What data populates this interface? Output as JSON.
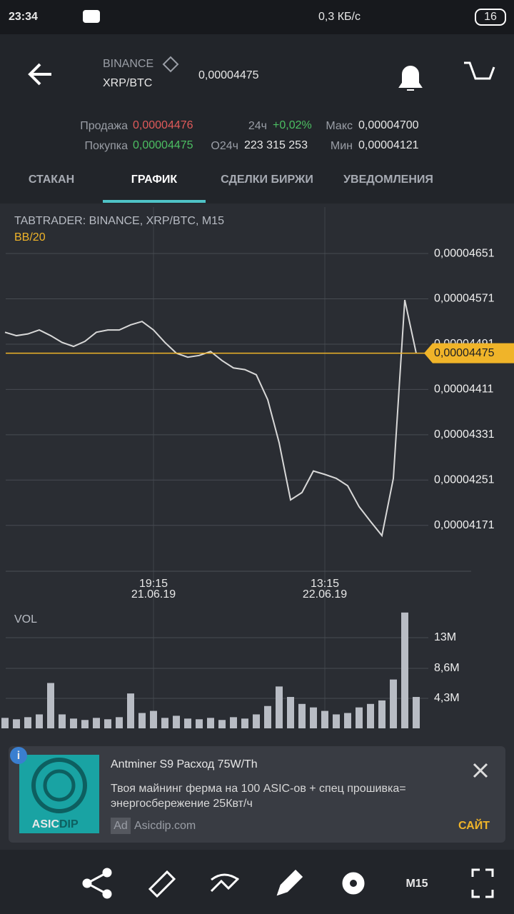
{
  "status_bar": {
    "time": "23:34",
    "speed": "0,3 КБ/с",
    "battery": "16"
  },
  "header": {
    "exchange": "BINANCE",
    "pair": "XRP/BTC",
    "price": "0,00004475"
  },
  "stats": {
    "sell_label": "Продажа",
    "sell": "0,00004476",
    "buy_label": "Покупка",
    "buy": "0,00004475",
    "change_label": "24ч",
    "change": "+0,02%",
    "volume_label": "O24ч",
    "volume": "223 315 253",
    "max_label": "Макс",
    "max": "0,00004700",
    "min_label": "Мин",
    "min": "0,00004121"
  },
  "tabs": {
    "items": [
      "СТАКАН",
      "ГРАФИК",
      "СДЕЛКИ БИРЖИ",
      "УВЕДОМЛЕНИЯ"
    ],
    "active": 1
  },
  "chart_data": [
    {
      "type": "line",
      "title": "TABTRADER: BINANCE, XRP/BTC, M15",
      "indicator": "BB/20",
      "color": "#d8d8d8",
      "categories": [
        null,
        null,
        null,
        null,
        null,
        null,
        null,
        null,
        null,
        null,
        null,
        null,
        null,
        "19:15",
        null,
        null,
        null,
        null,
        null,
        null,
        null,
        null,
        null,
        null,
        null,
        null,
        null,
        null,
        "13:15",
        null,
        null,
        null,
        null,
        null,
        null,
        null,
        null
      ],
      "dates": [
        null,
        null,
        null,
        null,
        null,
        null,
        null,
        null,
        null,
        null,
        null,
        null,
        null,
        "21.06.19",
        null,
        null,
        null,
        null,
        null,
        null,
        null,
        null,
        null,
        null,
        null,
        null,
        null,
        null,
        "22.06.19",
        null,
        null,
        null,
        null,
        null,
        null,
        null,
        null
      ],
      "values": [
        4.512e-05,
        4.506e-05,
        4.509e-05,
        4.516e-05,
        4.506e-05,
        4.494e-05,
        4.487e-05,
        4.496e-05,
        4.512e-05,
        4.516e-05,
        4.516e-05,
        4.525e-05,
        4.531e-05,
        4.516e-05,
        4.494e-05,
        4.475e-05,
        4.468e-05,
        4.471e-05,
        4.478e-05,
        4.462e-05,
        4.449e-05,
        4.446e-05,
        4.437e-05,
        4.393e-05,
        4.317e-05,
        4.216e-05,
        4.229e-05,
        4.267e-05,
        4.261e-05,
        4.254e-05,
        4.241e-05,
        4.204e-05,
        4.178e-05,
        4.153e-05,
        4.254e-05,
        4.569e-05,
        4.475e-05
      ],
      "current_price": {
        "value": 4.475e-05,
        "label": "0,00004475"
      },
      "ylim": [
        4.09e-05,
        4.733e-05
      ],
      "yticks": [
        {
          "value": 4.171e-05,
          "label": "0,00004171"
        },
        {
          "value": 4.251e-05,
          "label": "0,00004251"
        },
        {
          "value": 4.331e-05,
          "label": "0,00004331"
        },
        {
          "value": 4.411e-05,
          "label": "0,00004411"
        },
        {
          "value": 4.491e-05,
          "label": "0,00004491"
        },
        {
          "value": 4.571e-05,
          "label": "0,00004571"
        },
        {
          "value": 4.651e-05,
          "label": "0,00004651"
        }
      ],
      "grid": true
    },
    {
      "type": "bar",
      "title": "VOL",
      "color": "#b8bcc4",
      "values": [
        1500000,
        1300000,
        1600000,
        2000000,
        6500000,
        2000000,
        1400000,
        1200000,
        1500000,
        1300000,
        1600000,
        5000000,
        2200000,
        2500000,
        1500000,
        1800000,
        1400000,
        1300000,
        1500000,
        1200000,
        1600000,
        1400000,
        2000000,
        3200000,
        6000000,
        4500000,
        3500000,
        3000000,
        2500000,
        2000000,
        2200000,
        3000000,
        3500000,
        4000000,
        7000000,
        16600000,
        4500000
      ],
      "ylim": [
        0,
        17400000
      ],
      "yticks": [
        {
          "value": 4300000,
          "label": "4,3M"
        },
        {
          "value": 8600000,
          "label": "8,6M"
        },
        {
          "value": 13000000,
          "label": "13M"
        }
      ],
      "grid": true
    }
  ],
  "ad": {
    "title": "Antminer S9 Расход 75W/Th",
    "body": "Твоя майнинг ферма на 100 ASIC-ов + спец прошивка= энергосбережение 25Квт/ч",
    "badge": "Ad",
    "domain": "Asicdip.com",
    "cta": "САЙТ",
    "logo_a": "ASIC",
    "logo_b": "DIP"
  },
  "toolbar": {
    "timeframe": "M15"
  }
}
